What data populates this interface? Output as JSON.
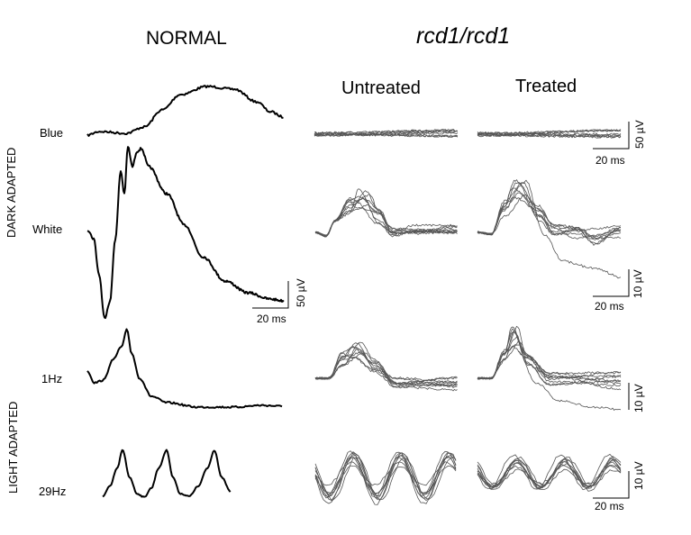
{
  "title_left": "NORMAL",
  "title_right": "rcd1/rcd1",
  "col_untreated": "Untreated",
  "col_treated": "Treated",
  "section_dark": "DARK ADAPTED",
  "section_light": "LIGHT ADAPTED",
  "rows": {
    "blue": "Blue",
    "white": "White",
    "hz1": "1Hz",
    "hz29": "29Hz"
  },
  "scales": {
    "normal": {
      "y": "50 µV",
      "x": "20 ms"
    },
    "blue": {
      "y": "50 µV",
      "x": "20 ms"
    },
    "white_treated": {
      "y": "10 µV",
      "x": "20 ms"
    },
    "hz1_treated": {
      "y": "10 µV"
    },
    "hz29_treated": {
      "y": "10 µV",
      "x": "20 ms"
    }
  },
  "colors": {
    "normal_trace": "#000000",
    "rcd_trace": "#555555"
  }
}
